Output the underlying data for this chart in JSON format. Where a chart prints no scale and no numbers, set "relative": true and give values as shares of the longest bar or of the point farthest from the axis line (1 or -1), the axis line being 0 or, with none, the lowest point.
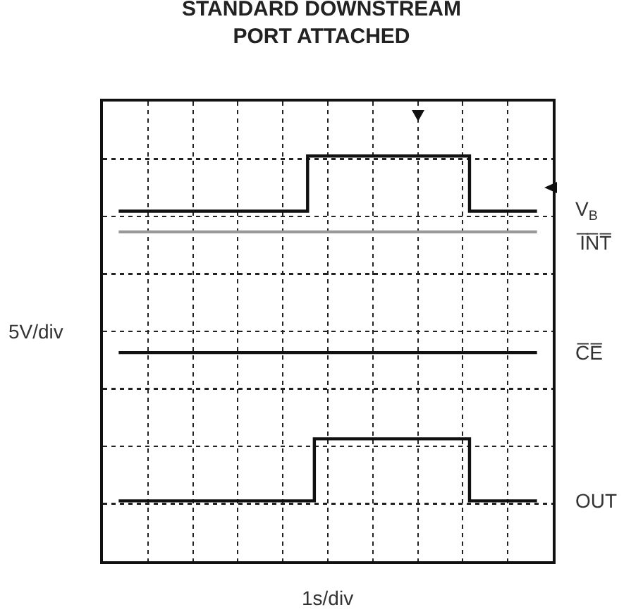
{
  "chart_data": {
    "type": "step",
    "title": "STANDARD DOWNSTREAM\nPORT ATTACHED",
    "xlabel": "1s/div",
    "ylabel": "5V/div",
    "relative": true,
    "grid": true,
    "legend": false,
    "tick_labels": false,
    "categories": [
      null,
      null,
      null,
      null,
      null,
      null,
      null,
      null,
      null,
      null,
      null,
      null,
      null,
      null,
      null,
      null,
      null,
      null,
      null,
      null,
      null,
      null,
      null,
      null,
      null,
      null,
      null,
      null,
      null,
      null,
      null,
      null,
      null,
      null,
      null,
      null,
      null,
      null,
      null,
      null,
      null,
      null,
      null,
      null,
      null,
      null,
      null,
      null,
      null,
      null,
      null,
      null,
      null,
      null,
      null,
      null,
      null,
      null,
      null,
      null,
      null,
      null,
      null
    ],
    "series": [
      {
        "name": "V$_{B}$",
        "color": "#111111",
        "values": [
          0.84,
          0.84,
          0.84,
          0.84,
          0.84,
          0.84,
          0.84,
          0.84,
          0.84,
          0.84,
          0.84,
          0.84,
          0.84,
          0.84,
          0.84,
          0.84,
          0.84,
          0.84,
          0.84,
          0.84,
          0.84,
          0.84,
          0.84,
          0.84,
          0.84,
          0.84,
          0.84,
          0.84,
          1,
          1,
          1,
          1,
          1,
          1,
          1,
          1,
          1,
          1,
          1,
          1,
          1,
          1,
          1,
          1,
          1,
          1,
          1,
          1,
          1,
          1,
          1,
          1,
          0.84,
          0.84,
          0.84,
          0.84,
          0.84,
          0.84,
          0.84,
          0.84,
          0.84,
          0.84,
          0.84
        ]
      },
      {
        "name": "I̅N̅T̅",
        "color": "#999999",
        "values": [
          0.78,
          0.78,
          0.78,
          0.78,
          0.78,
          0.78,
          0.78,
          0.78,
          0.78,
          0.78,
          0.78,
          0.78,
          0.78,
          0.78,
          0.78,
          0.78,
          0.78,
          0.78,
          0.78,
          0.78,
          0.78,
          0.78,
          0.78,
          0.78,
          0.78,
          0.78,
          0.78,
          0.78,
          0.78,
          0.78,
          0.78,
          0.78,
          0.78,
          0.78,
          0.78,
          0.78,
          0.78,
          0.78,
          0.78,
          0.78,
          0.78,
          0.78,
          0.78,
          0.78,
          0.78,
          0.78,
          0.78,
          0.78,
          0.78,
          0.78,
          0.78,
          0.78,
          0.78,
          0.78,
          0.78,
          0.78,
          0.78,
          0.78,
          0.78,
          0.78,
          0.78,
          0.78,
          0.78
        ]
      },
      {
        "name": "C̅E̅",
        "color": "#111111",
        "values": [
          0.43,
          0.43,
          0.43,
          0.43,
          0.43,
          0.43,
          0.43,
          0.43,
          0.43,
          0.43,
          0.43,
          0.43,
          0.43,
          0.43,
          0.43,
          0.43,
          0.43,
          0.43,
          0.43,
          0.43,
          0.43,
          0.43,
          0.43,
          0.43,
          0.43,
          0.43,
          0.43,
          0.43,
          0.43,
          0.43,
          0.43,
          0.43,
          0.43,
          0.43,
          0.43,
          0.43,
          0.43,
          0.43,
          0.43,
          0.43,
          0.43,
          0.43,
          0.43,
          0.43,
          0.43,
          0.43,
          0.43,
          0.43,
          0.43,
          0.43,
          0.43,
          0.43,
          0.43,
          0.43,
          0.43,
          0.43,
          0.43,
          0.43,
          0.43,
          0.43,
          0.43,
          0.43,
          0.43
        ]
      },
      {
        "name": "OUT",
        "color": "#111111",
        "values": [
          0,
          0,
          0,
          0,
          0,
          0,
          0,
          0,
          0,
          0,
          0,
          0,
          0,
          0,
          0,
          0,
          0,
          0,
          0,
          0,
          0,
          0,
          0,
          0,
          0,
          0,
          0,
          0,
          0,
          0.18,
          0.18,
          0.18,
          0.18,
          0.18,
          0.18,
          0.18,
          0.18,
          0.18,
          0.18,
          0.18,
          0.18,
          0.18,
          0.18,
          0.18,
          0.18,
          0.18,
          0.18,
          0.18,
          0.18,
          0.18,
          0.18,
          0.18,
          0,
          0,
          0,
          0,
          0,
          0,
          0,
          0,
          0,
          0,
          0
        ]
      }
    ]
  }
}
